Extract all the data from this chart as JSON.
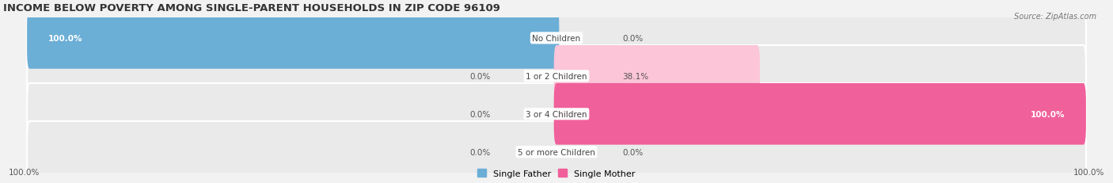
{
  "title": "INCOME BELOW POVERTY AMONG SINGLE-PARENT HOUSEHOLDS IN ZIP CODE 96109",
  "source": "Source: ZipAtlas.com",
  "categories": [
    "No Children",
    "1 or 2 Children",
    "3 or 4 Children",
    "5 or more Children"
  ],
  "single_father": [
    100.0,
    0.0,
    0.0,
    0.0
  ],
  "single_mother": [
    0.0,
    38.1,
    100.0,
    0.0
  ],
  "father_color": "#6baed6",
  "mother_color": "#f0609a",
  "father_color_light": "#c6dbef",
  "mother_color_light": "#fcc5d8",
  "bg_color": "#f2f2f2",
  "bar_bg_color": "#e2e2e2",
  "row_bg_color": "#eaeaea",
  "max_value": 100.0,
  "title_fontsize": 9.5,
  "label_fontsize": 7.5,
  "value_fontsize": 7.5,
  "axis_label_fontsize": 7.5,
  "legend_fontsize": 8
}
